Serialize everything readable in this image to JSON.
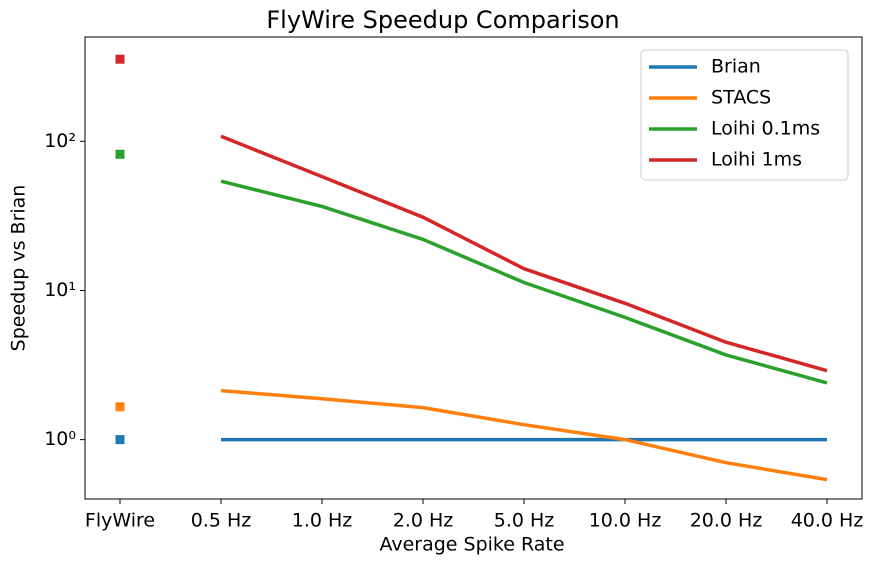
{
  "chart_data": {
    "type": "line",
    "title": "FlyWire Speedup Comparison",
    "x_label": "Average Spike Rate",
    "y_label": "Speedup vs Brian",
    "categories": [
      "FlyWire",
      "0.5 Hz",
      "1.0 Hz",
      "2.0 Hz",
      "5.0 Hz",
      "10.0 Hz",
      "20.0 Hz",
      "40.0 Hz"
    ],
    "log_y": true,
    "ylim": [
      0.4,
      500
    ],
    "yticks": [
      {
        "value": 1,
        "label": "10⁰"
      },
      {
        "value": 10,
        "label": "10¹"
      },
      {
        "value": 100,
        "label": "10²"
      }
    ],
    "legend": "upper right",
    "series": [
      {
        "name": "Brian",
        "color": "#1f77b4",
        "values": [
          null,
          1,
          1,
          1,
          1,
          1,
          1,
          1
        ]
      },
      {
        "name": "STACS",
        "color": "#ff7f0e",
        "values": [
          null,
          2.13,
          1.88,
          1.64,
          1.26,
          1.0,
          0.7,
          0.54
        ]
      },
      {
        "name": "Loihi 0.1ms",
        "color": "#2ca02c",
        "values": [
          null,
          54,
          36.6,
          22,
          11.3,
          6.6,
          3.7,
          2.4
        ]
      },
      {
        "name": "Loihi 1ms",
        "color": "#d62728",
        "values": [
          null,
          108,
          58,
          31,
          14,
          8.2,
          4.5,
          2.9
        ]
      }
    ],
    "marker_series": [
      {
        "color": "#1f77b4",
        "values": [
          1,
          null,
          null,
          null,
          null,
          null,
          null,
          null
        ]
      },
      {
        "color": "#ff7f0e",
        "values": [
          1.66,
          null,
          null,
          null,
          null,
          null,
          null,
          null
        ]
      },
      {
        "color": "#2ca02c",
        "values": [
          81.8,
          null,
          null,
          null,
          null,
          null,
          null,
          null
        ]
      },
      {
        "color": "#d62728",
        "values": [
          355,
          null,
          null,
          null,
          null,
          null,
          null,
          null
        ]
      }
    ]
  }
}
